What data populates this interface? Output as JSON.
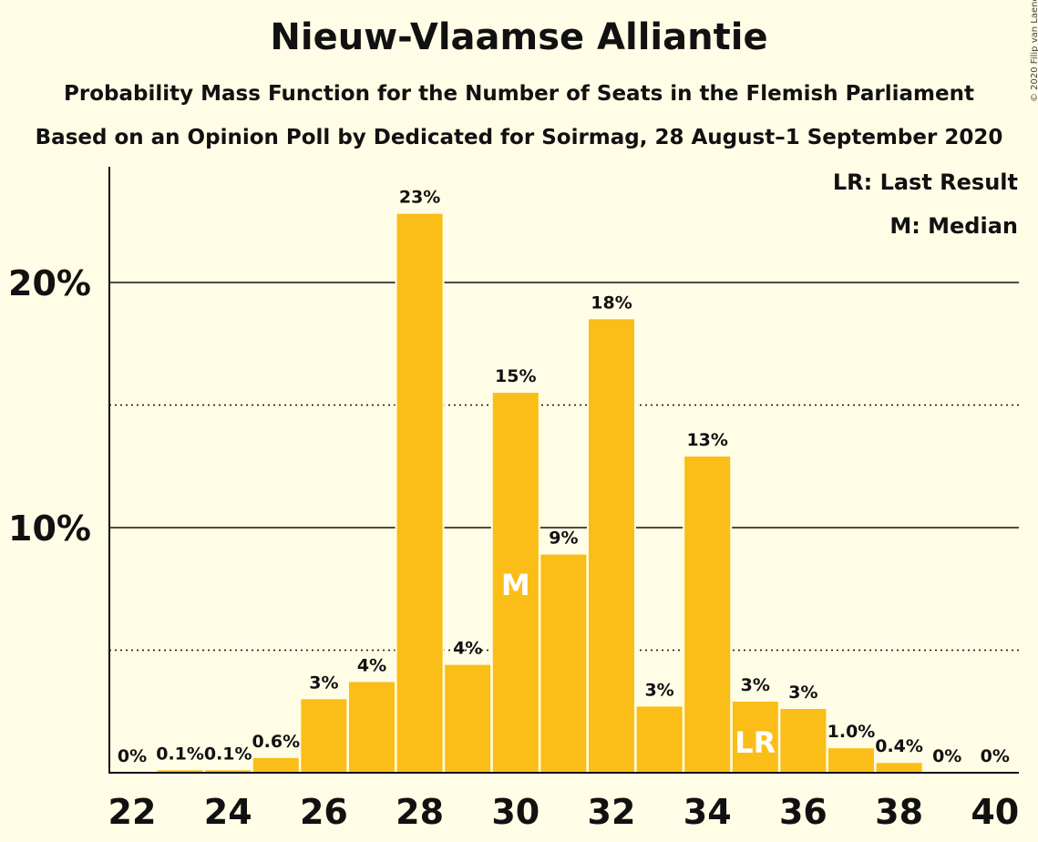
{
  "header": {
    "title": "Nieuw-Vlaamse Alliantie",
    "subtitle": "Probability Mass Function for the Number of Seats in the Flemish Parliament",
    "source": "Based on an Opinion Poll by Dedicated for Soirmag, 28 August–1 September 2020",
    "copyright": "© 2020 Filip van Laenen"
  },
  "legend": {
    "last_result": "LR: Last Result",
    "median": "M: Median"
  },
  "colors": {
    "bar": "#FBBD17",
    "background": "#FFFDE6",
    "text": "#111111"
  },
  "chart_data": {
    "type": "bar",
    "categories": [
      22,
      23,
      24,
      25,
      26,
      27,
      28,
      29,
      30,
      31,
      32,
      33,
      34,
      35,
      36,
      37,
      38,
      39,
      40
    ],
    "values": [
      0,
      0.1,
      0.1,
      0.6,
      3.0,
      3.7,
      22.8,
      4.4,
      15.5,
      8.9,
      18.5,
      2.7,
      12.9,
      2.9,
      2.6,
      1.0,
      0.4,
      0,
      0
    ],
    "data_labels": [
      "0%",
      "0.1%",
      "0.1%",
      "0.6%",
      "3%",
      "4%",
      "23%",
      "4%",
      "15%",
      "9%",
      "18%",
      "3%",
      "13%",
      "3%",
      "3%",
      "1.0%",
      "0.4%",
      "0%",
      "0%"
    ],
    "x_ticks": [
      22,
      24,
      26,
      28,
      30,
      32,
      34,
      36,
      38,
      40
    ],
    "y_ticks": [
      {
        "value": 10,
        "label": "10%"
      },
      {
        "value": 20,
        "label": "20%"
      }
    ],
    "y_minor_gridlines": [
      5,
      15
    ],
    "ylim": [
      0,
      24.8
    ],
    "median_seat": 30,
    "median_marker": "M",
    "last_result_seat": 35,
    "last_result_marker": "LR",
    "xlabel": "",
    "ylabel": "",
    "legend_position": "top-right"
  }
}
